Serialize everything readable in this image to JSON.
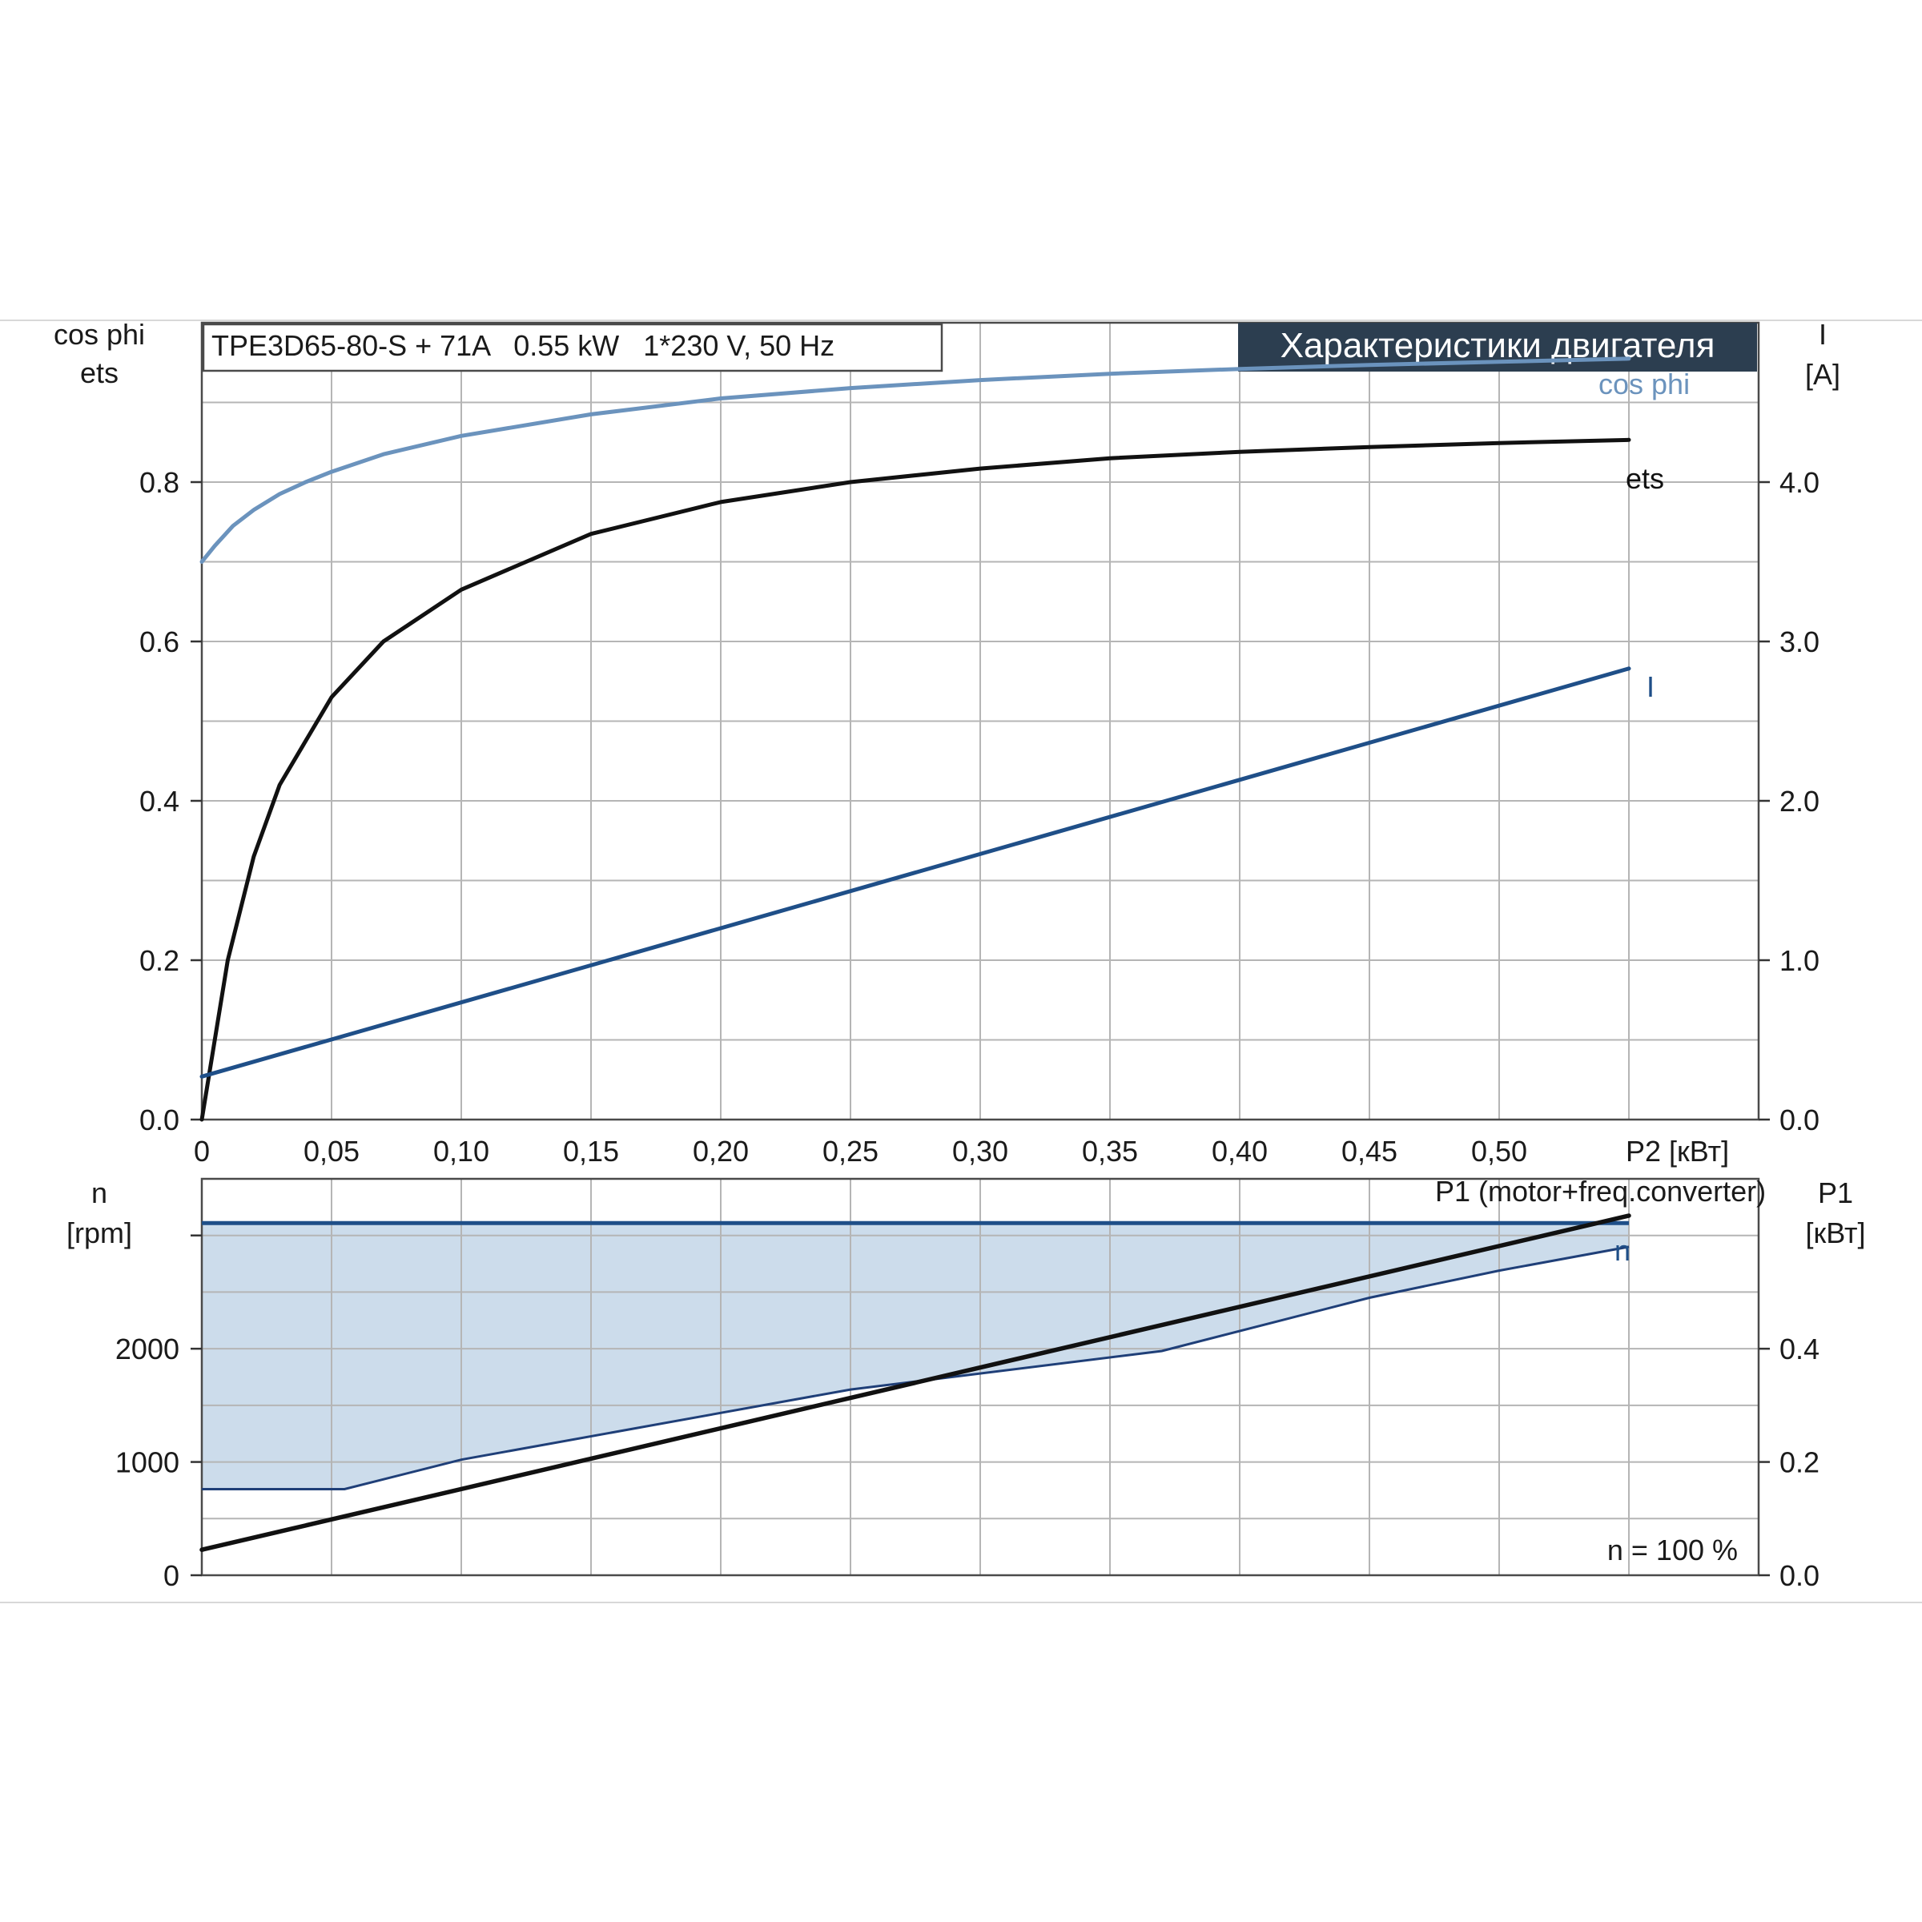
{
  "chart_data": [
    {
      "type": "line",
      "title": "TPE3D65-80-S + 71A   0.55 kW   1*230 V, 50 Hz",
      "badge": "Характеристики двигателя",
      "xlabel": "P2 [кВт]",
      "ylabel_left": [
        "cos phi",
        "ets"
      ],
      "ylabel_right": [
        "I",
        "[A]"
      ],
      "xlim": [
        0,
        0.6
      ],
      "ylim_left": [
        0,
        1.0
      ],
      "ylim_right": [
        0,
        5.0
      ],
      "x_tick_values": [
        0,
        0.05,
        0.1,
        0.15,
        0.2,
        0.25,
        0.3,
        0.35,
        0.4,
        0.45,
        0.5
      ],
      "x_tick_labels": [
        "0",
        "0,05",
        "0,10",
        "0,15",
        "0,20",
        "0,25",
        "0,30",
        "0,35",
        "0,40",
        "0,45",
        "0,50"
      ],
      "y_left_tick_values": [
        0,
        0.2,
        0.4,
        0.6,
        0.8
      ],
      "y_left_tick_labels": [
        "0.0",
        "0.2",
        "0.4",
        "0.6",
        "0.8"
      ],
      "y_right_tick_values": [
        0,
        1.0,
        2.0,
        3.0,
        4.0
      ],
      "y_right_tick_labels": [
        "0.0",
        "1.0",
        "2.0",
        "3.0",
        "4.0"
      ],
      "grid": true,
      "series": [
        {
          "name": "cos phi",
          "axis": "left",
          "color": "#6b93bd",
          "x": [
            0,
            0.005,
            0.012,
            0.02,
            0.03,
            0.04,
            0.05,
            0.07,
            0.1,
            0.15,
            0.2,
            0.25,
            0.3,
            0.35,
            0.4,
            0.45,
            0.5,
            0.55
          ],
          "y": [
            0.7,
            0.72,
            0.745,
            0.765,
            0.785,
            0.8,
            0.813,
            0.835,
            0.858,
            0.885,
            0.905,
            0.918,
            0.928,
            0.936,
            0.942,
            0.947,
            0.951,
            0.955
          ]
        },
        {
          "name": "ets",
          "axis": "left",
          "color": "#111111",
          "x": [
            0,
            0.005,
            0.01,
            0.02,
            0.03,
            0.05,
            0.07,
            0.1,
            0.15,
            0.2,
            0.25,
            0.3,
            0.35,
            0.4,
            0.45,
            0.5,
            0.55
          ],
          "y": [
            0.0,
            0.1,
            0.2,
            0.33,
            0.42,
            0.53,
            0.6,
            0.665,
            0.735,
            0.775,
            0.8,
            0.817,
            0.83,
            0.838,
            0.844,
            0.849,
            0.853
          ]
        },
        {
          "name": "I",
          "axis": "right",
          "color": "#1f4f88",
          "x": [
            0,
            0.55
          ],
          "y": [
            0.27,
            2.83
          ]
        }
      ]
    },
    {
      "type": "line",
      "xlim": [
        0,
        0.6
      ],
      "ylabel_left": [
        "n",
        "[rpm]"
      ],
      "ylabel_right": [
        "P1",
        "[кВт]"
      ],
      "ylim_left": [
        0,
        3500
      ],
      "ylim_right": [
        0,
        0.7
      ],
      "y_left_tick_values": [
        0,
        1000,
        2000
      ],
      "y_left_tick_labels": [
        "0",
        "1000",
        "2000"
      ],
      "y_right_tick_values": [
        0,
        0.2,
        0.4
      ],
      "y_right_tick_labels": [
        "0.0",
        "0.2",
        "0.4"
      ],
      "annotation": "n = 100 %",
      "grid": true,
      "n_band_upper": {
        "color": "#1f4f88",
        "x": [
          0,
          0.55
        ],
        "y": [
          3110,
          3110
        ]
      },
      "series": [
        {
          "name": "n",
          "axis": "left",
          "color": "#1f3f78",
          "fill": "#ccdceb",
          "x": [
            0,
            0.055,
            0.1,
            0.25,
            0.37,
            0.45,
            0.5,
            0.55
          ],
          "y": [
            760,
            760,
            1020,
            1640,
            1980,
            2450,
            2690,
            2900
          ]
        },
        {
          "name": "P1 (motor+freq.converter)",
          "axis": "right",
          "color": "#111111",
          "x": [
            0,
            0.55
          ],
          "y": [
            0.045,
            0.635
          ]
        }
      ]
    }
  ]
}
